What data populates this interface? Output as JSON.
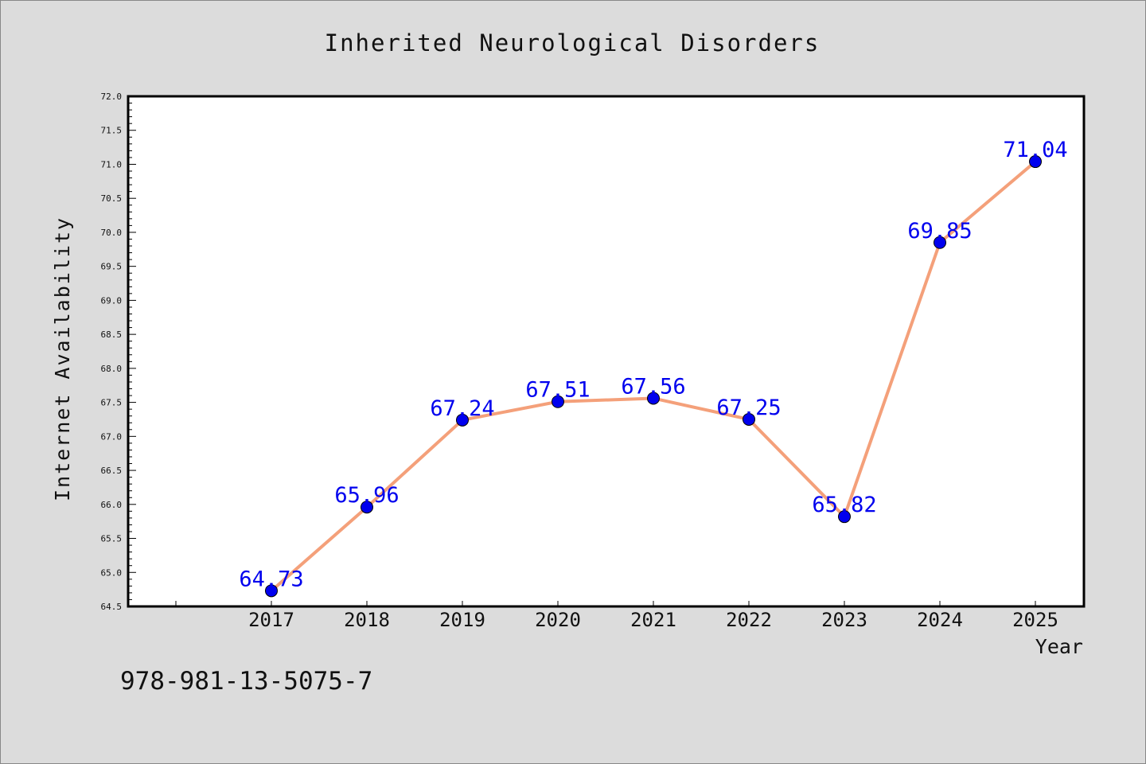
{
  "chart_data": {
    "type": "line",
    "title": "Inherited Neurological Disorders",
    "xlabel": "Year",
    "ylabel": "Internet Availability",
    "categories": [
      "2017",
      "2018",
      "2019",
      "2020",
      "2021",
      "2022",
      "2023",
      "2024",
      "2025"
    ],
    "series": [
      {
        "values": [
          64.73,
          65.96,
          67.24,
          67.51,
          67.56,
          67.25,
          65.82,
          69.85,
          71.04
        ],
        "data_labels": [
          "64.73",
          "65.96",
          "67.24",
          "67.51",
          "67.56",
          "67.25",
          "65.82",
          "69.85",
          "71.04"
        ]
      }
    ],
    "ylim": [
      64.5,
      72.0
    ],
    "yticks": [
      "64.5",
      "65.0",
      "65.5",
      "66.0",
      "66.5",
      "67.0",
      "67.5",
      "68.0",
      "68.5",
      "69.0",
      "69.5",
      "70.0",
      "70.5",
      "71.0",
      "71.5",
      "72.0"
    ],
    "grid": false,
    "legend": "none",
    "line_color": "#f4a07a",
    "marker_color": "#0000ee",
    "label_color": "#0000ee",
    "background_color": "#dcdcdc",
    "plot_background_color": "#ffffff"
  },
  "footer": {
    "isbn": "978-981-13-5075-7"
  }
}
